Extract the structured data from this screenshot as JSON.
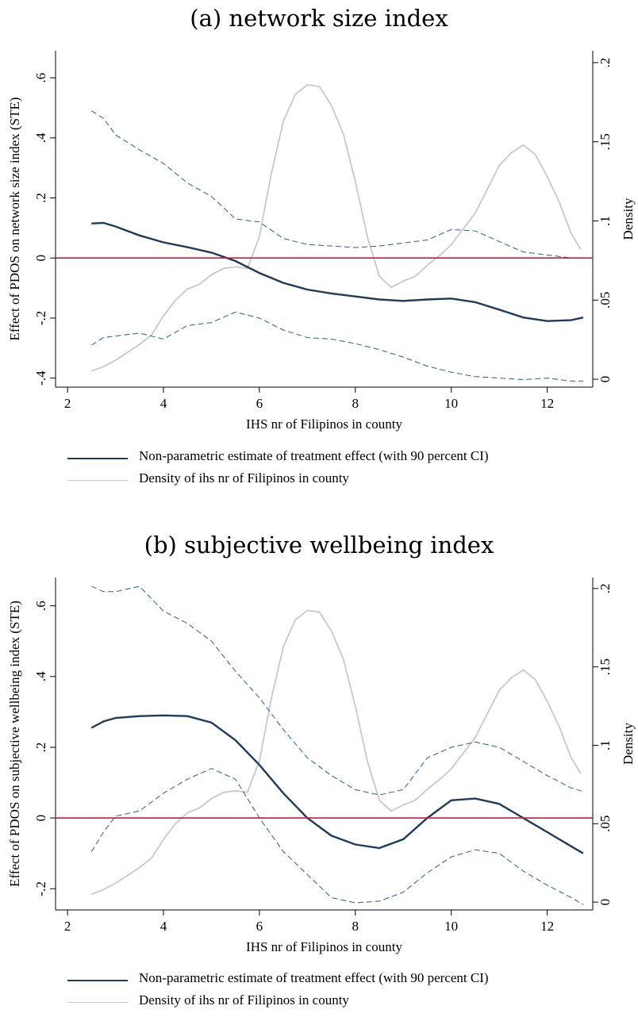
{
  "colors": {
    "effect": "#1f3b5c",
    "ci": "#2e5a8e",
    "density": "#c8c8c8",
    "zero_line": "#c41e3a"
  },
  "chart_data": [
    {
      "type": "line",
      "title": "(a) network size index",
      "xlabel": "IHS nr of Filipinos in county",
      "ylabel": "Effect of PDOS on network size index (STE)",
      "y2label": "Density",
      "xlim": [
        1.75,
        12.95
      ],
      "ylim": [
        -0.43,
        0.69
      ],
      "y2lim": [
        -0.005,
        0.2075
      ],
      "xticks": [
        "2",
        "4",
        "6",
        "8",
        "10",
        "12"
      ],
      "yticks": [
        "-.4",
        "-.2",
        "0",
        ".2",
        ".4",
        ".6"
      ],
      "y2ticks": [
        "0",
        ".05",
        ".1",
        ".15",
        ".2"
      ],
      "zero_line": 0,
      "legend": {
        "placement": "bottom",
        "entries": [
          "Non-parametric estimate of treatment effect (with 90 percent CI)",
          "Density of ihs nr of Filipinos in county"
        ]
      },
      "series": [
        {
          "name": "Non-parametric estimate of treatment effect (with 90 percent CI)",
          "role": "estimate",
          "axis": "left",
          "x": [
            2.5,
            2.75,
            3,
            3.5,
            4,
            4.5,
            5,
            5.5,
            6,
            6.5,
            7,
            7.5,
            8,
            8.5,
            9,
            9.5,
            10,
            10.5,
            11,
            11.5,
            12,
            12.5,
            12.75
          ],
          "y": [
            0.115,
            0.117,
            0.105,
            0.075,
            0.052,
            0.036,
            0.018,
            -0.01,
            -0.05,
            -0.083,
            -0.105,
            -0.118,
            -0.128,
            -0.138,
            -0.143,
            -0.138,
            -0.135,
            -0.147,
            -0.172,
            -0.198,
            -0.21,
            -0.207,
            -0.198
          ]
        },
        {
          "name": "Upper 90 percent CI",
          "role": "ci",
          "axis": "left",
          "x": [
            2.5,
            2.75,
            3,
            3.5,
            4,
            4.5,
            5,
            5.5,
            6,
            6.5,
            7,
            7.5,
            8,
            8.5,
            9,
            9.5,
            10,
            10.5,
            11,
            11.5,
            12,
            12.5,
            12.75
          ],
          "y": [
            0.49,
            0.465,
            0.41,
            0.36,
            0.315,
            0.25,
            0.205,
            0.13,
            0.12,
            0.065,
            0.045,
            0.04,
            0.035,
            0.04,
            0.05,
            0.06,
            0.095,
            0.09,
            0.055,
            0.02,
            0.01,
            0.0,
            0.0
          ]
        },
        {
          "name": "Lower 90 percent CI",
          "role": "ci",
          "axis": "left",
          "x": [
            2.5,
            2.75,
            3,
            3.5,
            4,
            4.5,
            5,
            5.5,
            6,
            6.5,
            7,
            7.5,
            8,
            8.5,
            9,
            9.5,
            10,
            10.5,
            11,
            11.5,
            12,
            12.5,
            12.75
          ],
          "y": [
            -0.29,
            -0.265,
            -0.26,
            -0.25,
            -0.27,
            -0.225,
            -0.215,
            -0.18,
            -0.2,
            -0.24,
            -0.265,
            -0.27,
            -0.285,
            -0.305,
            -0.33,
            -0.36,
            -0.38,
            -0.395,
            -0.4,
            -0.405,
            -0.4,
            -0.41,
            -0.41
          ]
        },
        {
          "name": "Density of ihs nr of Filipinos in county",
          "role": "density",
          "axis": "right",
          "x": [
            2.5,
            2.75,
            3,
            3.5,
            3.75,
            4,
            4.25,
            4.5,
            4.75,
            5,
            5.25,
            5.5,
            5.75,
            6,
            6.25,
            6.5,
            6.75,
            7,
            7.25,
            7.5,
            7.75,
            8,
            8.25,
            8.5,
            8.75,
            9,
            9.25,
            9.5,
            9.75,
            10,
            10.25,
            10.5,
            10.75,
            11,
            11.25,
            11.5,
            11.75,
            12,
            12.25,
            12.5,
            12.7
          ],
          "y": [
            0.005,
            0.008,
            0.012,
            0.022,
            0.028,
            0.04,
            0.05,
            0.057,
            0.06,
            0.066,
            0.07,
            0.071,
            0.07,
            0.09,
            0.13,
            0.163,
            0.18,
            0.186,
            0.185,
            0.173,
            0.155,
            0.125,
            0.09,
            0.065,
            0.058,
            0.062,
            0.065,
            0.072,
            0.078,
            0.085,
            0.095,
            0.105,
            0.12,
            0.135,
            0.143,
            0.148,
            0.142,
            0.128,
            0.112,
            0.092,
            0.082
          ]
        }
      ]
    },
    {
      "type": "line",
      "title": "(b) subjective wellbeing index",
      "xlabel": "IHS nr of Filipinos in county",
      "ylabel": "Effect of PDOS on subjective wellbeing index (STE)",
      "y2label": "Density",
      "xlim": [
        1.75,
        12.95
      ],
      "ylim": [
        -0.26,
        0.68
      ],
      "y2lim": [
        -0.005,
        0.207
      ],
      "xticks": [
        "2",
        "4",
        "6",
        "8",
        "10",
        "12"
      ],
      "yticks": [
        "-.2",
        "0",
        ".2",
        ".4",
        ".6"
      ],
      "y2ticks": [
        "0",
        ".05",
        ".1",
        ".15",
        ".2"
      ],
      "zero_line": 0,
      "legend": {
        "placement": "bottom",
        "entries": [
          "Non-parametric estimate of treatment effect (with 90 percent CI)",
          "Density of ihs nr of Filipinos in county"
        ]
      },
      "series": [
        {
          "name": "Non-parametric estimate of treatment effect (with 90 percent CI)",
          "role": "estimate",
          "axis": "left",
          "x": [
            2.5,
            2.75,
            3,
            3.5,
            4,
            4.5,
            5,
            5.5,
            6,
            6.5,
            7,
            7.5,
            8,
            8.5,
            9,
            9.5,
            10,
            10.5,
            11,
            11.5,
            12,
            12.5,
            12.75
          ],
          "y": [
            0.255,
            0.273,
            0.283,
            0.288,
            0.29,
            0.288,
            0.27,
            0.22,
            0.15,
            0.07,
            0.0,
            -0.05,
            -0.075,
            -0.085,
            -0.06,
            0.0,
            0.05,
            0.055,
            0.04,
            0.0,
            -0.04,
            -0.08,
            -0.1
          ]
        },
        {
          "name": "Upper 90 percent CI",
          "role": "ci",
          "axis": "left",
          "x": [
            2.5,
            2.75,
            3,
            3.5,
            4,
            4.5,
            5,
            5.5,
            6,
            6.5,
            7,
            7.5,
            8,
            8.5,
            9,
            9.5,
            10,
            10.5,
            11,
            11.5,
            12,
            12.5,
            12.75
          ],
          "y": [
            0.655,
            0.64,
            0.64,
            0.655,
            0.585,
            0.55,
            0.5,
            0.415,
            0.34,
            0.25,
            0.17,
            0.12,
            0.08,
            0.065,
            0.08,
            0.17,
            0.2,
            0.215,
            0.2,
            0.16,
            0.12,
            0.085,
            0.075
          ]
        },
        {
          "name": "Lower 90 percent CI",
          "role": "ci",
          "axis": "left",
          "x": [
            2.5,
            2.75,
            3,
            3.5,
            4,
            4.5,
            5,
            5.5,
            6,
            6.5,
            7,
            7.5,
            8,
            8.5,
            9,
            9.5,
            10,
            10.5,
            11,
            11.5,
            12,
            12.5,
            12.75
          ],
          "y": [
            -0.095,
            -0.04,
            0.005,
            0.02,
            0.07,
            0.11,
            0.14,
            0.11,
            0.0,
            -0.095,
            -0.16,
            -0.225,
            -0.24,
            -0.235,
            -0.21,
            -0.155,
            -0.11,
            -0.09,
            -0.1,
            -0.15,
            -0.19,
            -0.225,
            -0.245
          ]
        },
        {
          "name": "Density of ihs nr of Filipinos in county",
          "role": "density",
          "axis": "right",
          "x": [
            2.5,
            2.75,
            3,
            3.5,
            3.75,
            4,
            4.25,
            4.5,
            4.75,
            5,
            5.25,
            5.5,
            5.75,
            6,
            6.25,
            6.5,
            6.75,
            7,
            7.25,
            7.5,
            7.75,
            8,
            8.25,
            8.5,
            8.75,
            9,
            9.25,
            9.5,
            9.75,
            10,
            10.25,
            10.5,
            10.75,
            11,
            11.25,
            11.5,
            11.75,
            12,
            12.25,
            12.5,
            12.7
          ],
          "y": [
            0.005,
            0.008,
            0.012,
            0.022,
            0.028,
            0.04,
            0.05,
            0.057,
            0.06,
            0.066,
            0.07,
            0.071,
            0.07,
            0.09,
            0.13,
            0.163,
            0.18,
            0.186,
            0.185,
            0.173,
            0.155,
            0.125,
            0.09,
            0.065,
            0.058,
            0.062,
            0.065,
            0.072,
            0.078,
            0.085,
            0.095,
            0.105,
            0.12,
            0.135,
            0.143,
            0.148,
            0.142,
            0.128,
            0.112,
            0.092,
            0.082
          ]
        }
      ]
    }
  ]
}
